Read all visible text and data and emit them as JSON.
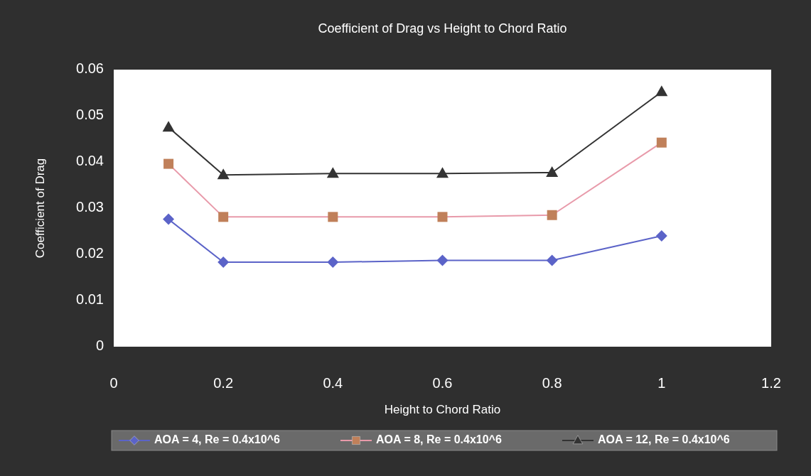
{
  "chart_data": {
    "type": "line",
    "title": "Coefficient of Drag vs Height to Chord Ratio",
    "xlabel": "Height to Chord Ratio",
    "ylabel": "Coefficient of Drag",
    "x": [
      0.1,
      0.2,
      0.4,
      0.6,
      0.8,
      1
    ],
    "series": [
      {
        "name": "AOA = 4, Re = 0.4x10^6",
        "color": "#5b63c8",
        "marker": "diamond",
        "values": [
          0.0276,
          0.0183,
          0.0183,
          0.0187,
          0.0187,
          0.024
        ]
      },
      {
        "name": "AOA = 8, Re = 0.4x10^6",
        "color": "#c0805a",
        "marker": "square",
        "values": [
          0.0396,
          0.0281,
          0.0281,
          0.0281,
          0.0285,
          0.0442
        ]
      },
      {
        "name": "AOA = 12, Re = 0.4x10^6",
        "color": "#333333",
        "marker": "triangle",
        "values": [
          0.0475,
          0.0372,
          0.0375,
          0.0375,
          0.0377,
          0.0552
        ]
      }
    ],
    "xlim": [
      0,
      1.2
    ],
    "xticks": [
      0,
      0.2,
      0.4,
      0.6,
      0.8,
      1,
      1.2
    ],
    "ylim": [
      0,
      0.06
    ],
    "yticks": [
      0,
      0.01,
      0.02,
      0.03,
      0.04,
      0.05,
      0.06
    ],
    "grid": false,
    "legend": "bottom"
  }
}
